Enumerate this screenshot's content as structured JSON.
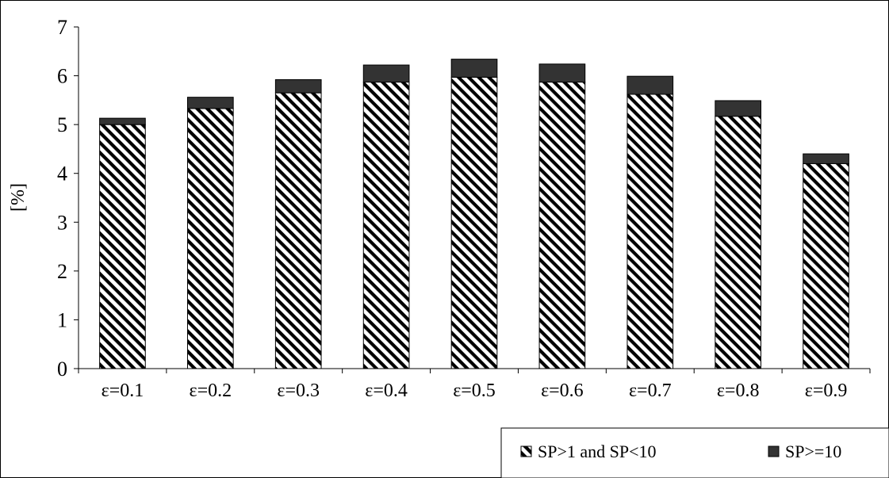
{
  "chart_data": {
    "type": "bar",
    "stacked": true,
    "categories": [
      "ε=0.1",
      "ε=0.2",
      "ε=0.3",
      "ε=0.4",
      "ε=0.5",
      "ε=0.6",
      "ε=0.7",
      "ε=0.8",
      "ε=0.9"
    ],
    "series": [
      {
        "name": "SP>1 and SP<10",
        "fill": "hatched",
        "color": "#000000",
        "values": [
          5.0,
          5.33,
          5.65,
          5.87,
          5.97,
          5.87,
          5.62,
          5.17,
          4.2
        ]
      },
      {
        "name": "SP>=10",
        "fill": "solid",
        "color": "#333333",
        "values": [
          0.13,
          0.23,
          0.27,
          0.35,
          0.37,
          0.37,
          0.37,
          0.32,
          0.2
        ]
      }
    ],
    "xlabel": "",
    "ylabel": "[%]",
    "ylim": [
      0,
      7
    ],
    "yticks": [
      "0",
      "1",
      "2",
      "3",
      "4",
      "5",
      "6",
      "7"
    ],
    "grid": false,
    "legend": "bottom-right"
  }
}
